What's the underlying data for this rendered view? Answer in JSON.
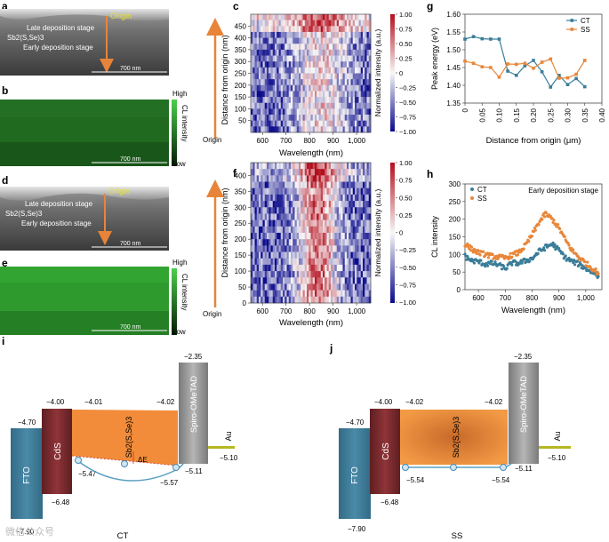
{
  "panels": {
    "a": {
      "letter": "a",
      "origin": "Origin",
      "late": "Late deposition stage",
      "material": "Sb2(S,Se)3",
      "early": "Early deposition stage",
      "scale": "700 nm"
    },
    "b": {
      "letter": "b",
      "colorbar_high": "High",
      "colorbar_title": "CL intensity",
      "colorbar_low": "Low",
      "scale": "700 nm"
    },
    "c": {
      "letter": "c",
      "ylabel": "Distance from origin (nm)",
      "xlabel": "Wavelength (nm)",
      "origin_label": "Origin",
      "colorbar_title": "Normalized intensity (a.u.)",
      "yticks": [
        "50",
        "100",
        "150",
        "200",
        "250",
        "300",
        "350",
        "400",
        "450"
      ],
      "xticks": [
        "600",
        "700",
        "800",
        "900",
        "1,000"
      ],
      "cticks": [
        "1.00",
        "0.75",
        "0.50",
        "0.25",
        "0",
        "−0.25",
        "−0.50",
        "−0.75",
        "−1.00"
      ]
    },
    "d": {
      "letter": "d",
      "origin": "Origin",
      "late": "Late deposition stage",
      "material": "Sb2(S,Se)3",
      "early": "Early deposition stage",
      "scale": "700 nm"
    },
    "e": {
      "letter": "e",
      "colorbar_high": "High",
      "colorbar_title": "CL intensity",
      "colorbar_low": "Low",
      "scale": "700 nm"
    },
    "f": {
      "letter": "f",
      "ylabel": "Distance from origin (nm)",
      "xlabel": "Wavelength (nm)",
      "origin_label": "Origin",
      "colorbar_title": "Normalized intensity (a.u.)",
      "yticks": [
        "0",
        "50",
        "100",
        "150",
        "200",
        "250",
        "300",
        "350",
        "400"
      ],
      "xticks": [
        "600",
        "700",
        "800",
        "900",
        "1,000"
      ],
      "cticks": [
        "1.00",
        "0.75",
        "0.50",
        "0.25",
        "0",
        "−0.25",
        "−0.50",
        "−0.75",
        "−1.00"
      ]
    },
    "g": {
      "letter": "g"
    },
    "h": {
      "letter": "h"
    },
    "i": {
      "letter": "i",
      "caption": "CT",
      "fto": "FTO",
      "fto_top": "−4.70",
      "fto_bottom": "−7.90",
      "cds": "CdS",
      "cds_top": "−4.00",
      "cds_bottom": "−6.48",
      "abs_cb_left": "−4.01",
      "abs_cb_right": "−4.02",
      "abs_label": "Sb2(S,Se)3",
      "abs_vb_left": "−5.47",
      "abs_vb_right": "−5.57",
      "delta_e": "ΔE",
      "htl": "Spiro-OMeTAD",
      "htl_top": "−2.35",
      "htl_homo": "−5.11",
      "au": "Au",
      "au_level": "−5.10"
    },
    "j": {
      "letter": "j",
      "caption": "SS",
      "fto": "FTO",
      "fto_top": "−4.70",
      "fto_bottom": "−7.90",
      "cds": "CdS",
      "cds_top": "−4.00",
      "cds_bottom": "−6.48",
      "abs_cb_left": "−4.02",
      "abs_cb_right": "−4.02",
      "abs_label": "Sb2(S,Se)3",
      "abs_vb_left": "−5.54",
      "abs_vb_right": "−5.54",
      "htl": "Spiro-OMeTAD",
      "htl_top": "−2.35",
      "htl_homo": "−5.11",
      "au": "Au",
      "au_level": "−5.10"
    }
  },
  "watermark": "微信公众号",
  "colors": {
    "ct": "#3b7d99",
    "ss": "#e8873a",
    "arrow": "#e8843a",
    "fto": "#3e7d9a",
    "cds": "#7c2a2e",
    "absorber": "#f28c3a",
    "htl": "#9a9a9a",
    "au": "#b5b81f"
  },
  "chart_data": [
    {
      "type": "line",
      "panel": "g",
      "ylabel": "Peak energy (eV)",
      "xlabel": "Distance from origin (μm)",
      "xlim": [
        0,
        0.4
      ],
      "ylim": [
        1.35,
        1.6
      ],
      "xticks": [
        "0",
        "0.05",
        "0.10",
        "0.15",
        "0.20",
        "0.25",
        "0.30",
        "0.35",
        "0.40"
      ],
      "yticks": [
        "1.35",
        "1.40",
        "1.45",
        "1.50",
        "1.55",
        "1.60"
      ],
      "legend_position": "top-right",
      "series": [
        {
          "name": "CT",
          "x": [
            0.0,
            0.025,
            0.05,
            0.075,
            0.1,
            0.125,
            0.15,
            0.175,
            0.2,
            0.225,
            0.25,
            0.275,
            0.3,
            0.325,
            0.35
          ],
          "y": [
            1.53,
            1.537,
            1.531,
            1.53,
            1.53,
            1.44,
            1.428,
            1.455,
            1.47,
            1.438,
            1.395,
            1.428,
            1.402,
            1.419,
            1.396
          ]
        },
        {
          "name": "SS",
          "x": [
            0.0,
            0.025,
            0.05,
            0.075,
            0.1,
            0.125,
            0.15,
            0.175,
            0.2,
            0.225,
            0.25,
            0.275,
            0.3,
            0.325,
            0.35
          ],
          "y": [
            1.468,
            1.462,
            1.452,
            1.45,
            1.423,
            1.46,
            1.459,
            1.462,
            1.448,
            1.465,
            1.474,
            1.42,
            1.421,
            1.431,
            1.47
          ]
        }
      ]
    },
    {
      "type": "scatter",
      "panel": "h",
      "ylabel": "CL intensity",
      "xlabel": "Wavelength (nm)",
      "annotation": "Early deposition stage",
      "xlim": [
        550,
        1060
      ],
      "ylim": [
        0,
        300
      ],
      "xticks": [
        "600",
        "700",
        "800",
        "900",
        "1,000"
      ],
      "yticks": [
        "0",
        "50",
        "100",
        "150",
        "200",
        "250",
        "300"
      ],
      "legend_position": "top-left",
      "series": [
        {
          "name": "CT",
          "x": [
            550,
            575,
            600,
            625,
            650,
            675,
            700,
            725,
            750,
            775,
            800,
            825,
            850,
            875,
            900,
            925,
            950,
            975,
            1000,
            1025,
            1050
          ],
          "y": [
            95,
            82,
            80,
            72,
            75,
            70,
            60,
            76,
            75,
            82,
            88,
            108,
            120,
            130,
            112,
            90,
            80,
            72,
            60,
            50,
            35
          ]
        },
        {
          "name": "SS",
          "x": [
            550,
            575,
            600,
            625,
            650,
            675,
            700,
            725,
            750,
            775,
            800,
            825,
            850,
            875,
            900,
            925,
            950,
            975,
            1000,
            1025,
            1050
          ],
          "y": [
            130,
            115,
            105,
            100,
            95,
            92,
            90,
            98,
            105,
            125,
            155,
            190,
            215,
            200,
            175,
            140,
            110,
            92,
            75,
            60,
            45
          ]
        }
      ]
    },
    {
      "type": "heatmap",
      "panel": "c",
      "x_range_nm": [
        550,
        1060
      ],
      "y_range_nm": [
        0,
        500
      ],
      "value_range": [
        -1.0,
        1.0
      ]
    },
    {
      "type": "heatmap",
      "panel": "f",
      "x_range_nm": [
        550,
        1060
      ],
      "y_range_nm": [
        0,
        440
      ],
      "value_range": [
        -1.0,
        1.0
      ]
    }
  ]
}
